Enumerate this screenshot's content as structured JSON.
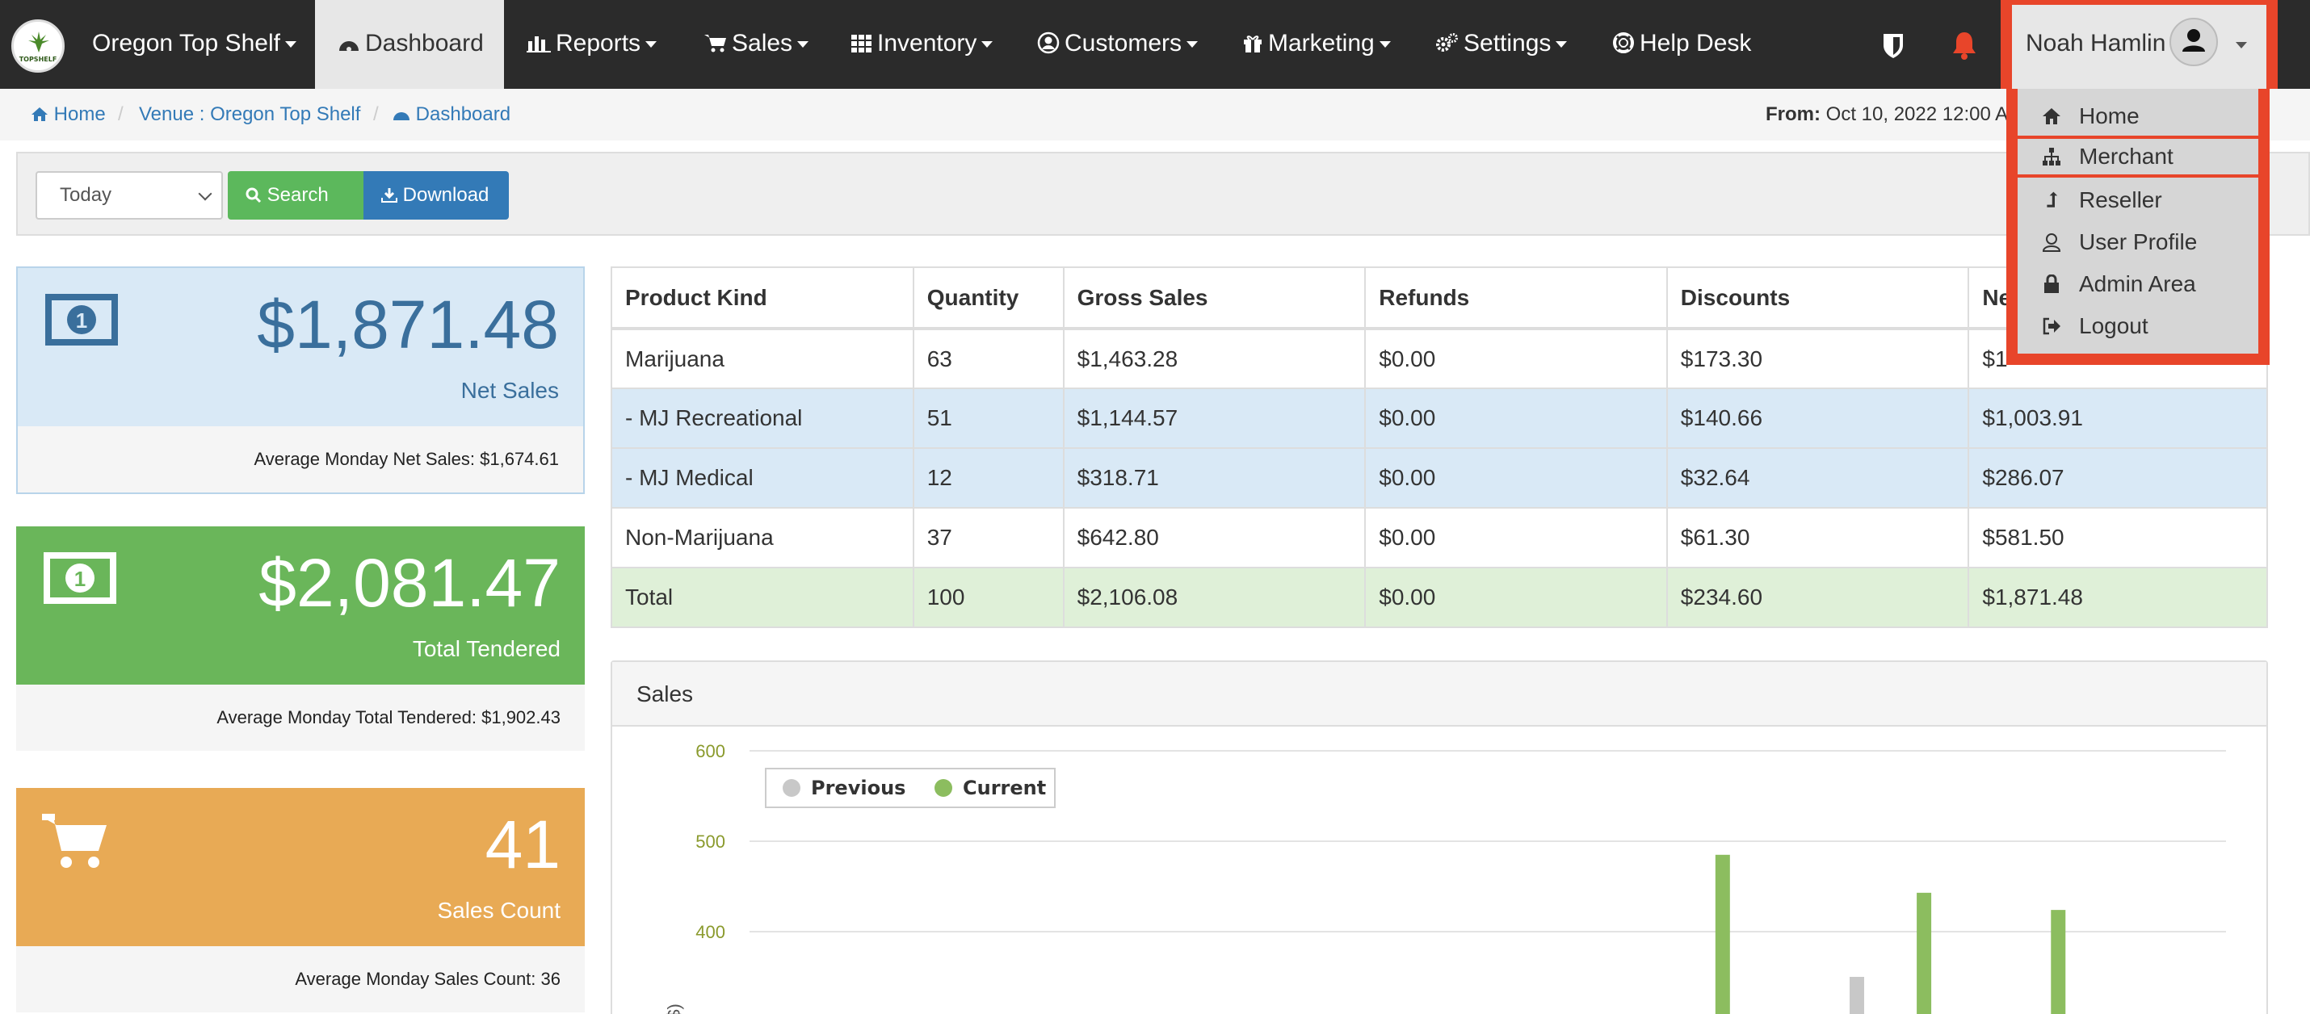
{
  "navbar": {
    "brand_text": "TOPSHELF",
    "venue": "Oregon Top Shelf",
    "items": [
      {
        "label": "Dashboard",
        "icon": "dashboard-icon"
      },
      {
        "label": "Reports",
        "icon": "bar-chart-icon"
      },
      {
        "label": "Sales",
        "icon": "cart-icon"
      },
      {
        "label": "Inventory",
        "icon": "grid-icon"
      },
      {
        "label": "Customers",
        "icon": "user-circle-icon"
      },
      {
        "label": "Marketing",
        "icon": "gift-icon"
      },
      {
        "label": "Settings",
        "icon": "gears-icon"
      },
      {
        "label": "Help Desk",
        "icon": "life-ring-icon"
      }
    ],
    "user_name": "Noah Hamlin"
  },
  "breadcrumb": {
    "items": [
      "Home",
      "Venue : Oregon Top Shelf",
      "Dashboard"
    ],
    "from_label": "From:",
    "from_value": "Oct 10, 2022 12:00 A"
  },
  "filters": {
    "period": "Today",
    "search_label": "Search",
    "download_label": "Download"
  },
  "cards": {
    "net": {
      "value": "$1,871.48",
      "label": "Net Sales",
      "footer": "Average Monday Net Sales: $1,674.61"
    },
    "tendered": {
      "value": "$2,081.47",
      "label": "Total Tendered",
      "footer": "Average Monday Total Tendered: $1,902.43"
    },
    "count": {
      "value": "41",
      "label": "Sales Count",
      "footer": "Average Monday Sales Count: 36"
    }
  },
  "table": {
    "headers": [
      "Product Kind",
      "Quantity",
      "Gross Sales",
      "Refunds",
      "Discounts",
      "Ne"
    ],
    "rows": [
      [
        "Marijuana",
        "63",
        "$1,463.28",
        "$0.00",
        "$173.30",
        "$1"
      ],
      [
        "- MJ Recreational",
        "51",
        "$1,144.57",
        "$0.00",
        "$140.66",
        "$1,003.91"
      ],
      [
        "- MJ Medical",
        "12",
        "$318.71",
        "$0.00",
        "$32.64",
        "$286.07"
      ],
      [
        "Non-Marijuana",
        "37",
        "$642.80",
        "$0.00",
        "$61.30",
        "$581.50"
      ],
      [
        "Total",
        "100",
        "$2,106.08",
        "$0.00",
        "$234.60",
        "$1,871.48"
      ]
    ]
  },
  "sales_panel": {
    "title": "Sales"
  },
  "chart_data": {
    "type": "bar",
    "title": "",
    "xlabel": "",
    "ylabel": "($)",
    "ylim": [
      0,
      600
    ],
    "yticks": [
      600,
      500,
      400
    ],
    "legend": "top-left",
    "grid": true,
    "series": [
      {
        "name": "Previous",
        "color": "#c8c8c8",
        "points": [
          {
            "i": 16,
            "value": 350
          }
        ]
      },
      {
        "name": "Current",
        "color": "#8cbd5f",
        "points": [
          {
            "i": 14,
            "value": 485
          },
          {
            "i": 17,
            "value": 443
          },
          {
            "i": 19,
            "value": 424
          }
        ]
      }
    ]
  },
  "dropdown": {
    "items": [
      {
        "label": "Home",
        "icon": "home-icon"
      },
      {
        "label": "Merchant",
        "icon": "sitemap-icon"
      },
      {
        "label": "Reseller",
        "icon": "level-up-icon"
      },
      {
        "label": "User Profile",
        "icon": "user-outline-icon"
      },
      {
        "label": "Admin Area",
        "icon": "lock-icon"
      },
      {
        "label": "Logout",
        "icon": "sign-out-icon"
      }
    ]
  },
  "colors": {
    "navbar": "#2b2b2b",
    "net_card": "#d9e9f6",
    "tendered_card": "#6ab65a",
    "count_card": "#e8aa55",
    "highlight": "#e8452a"
  }
}
